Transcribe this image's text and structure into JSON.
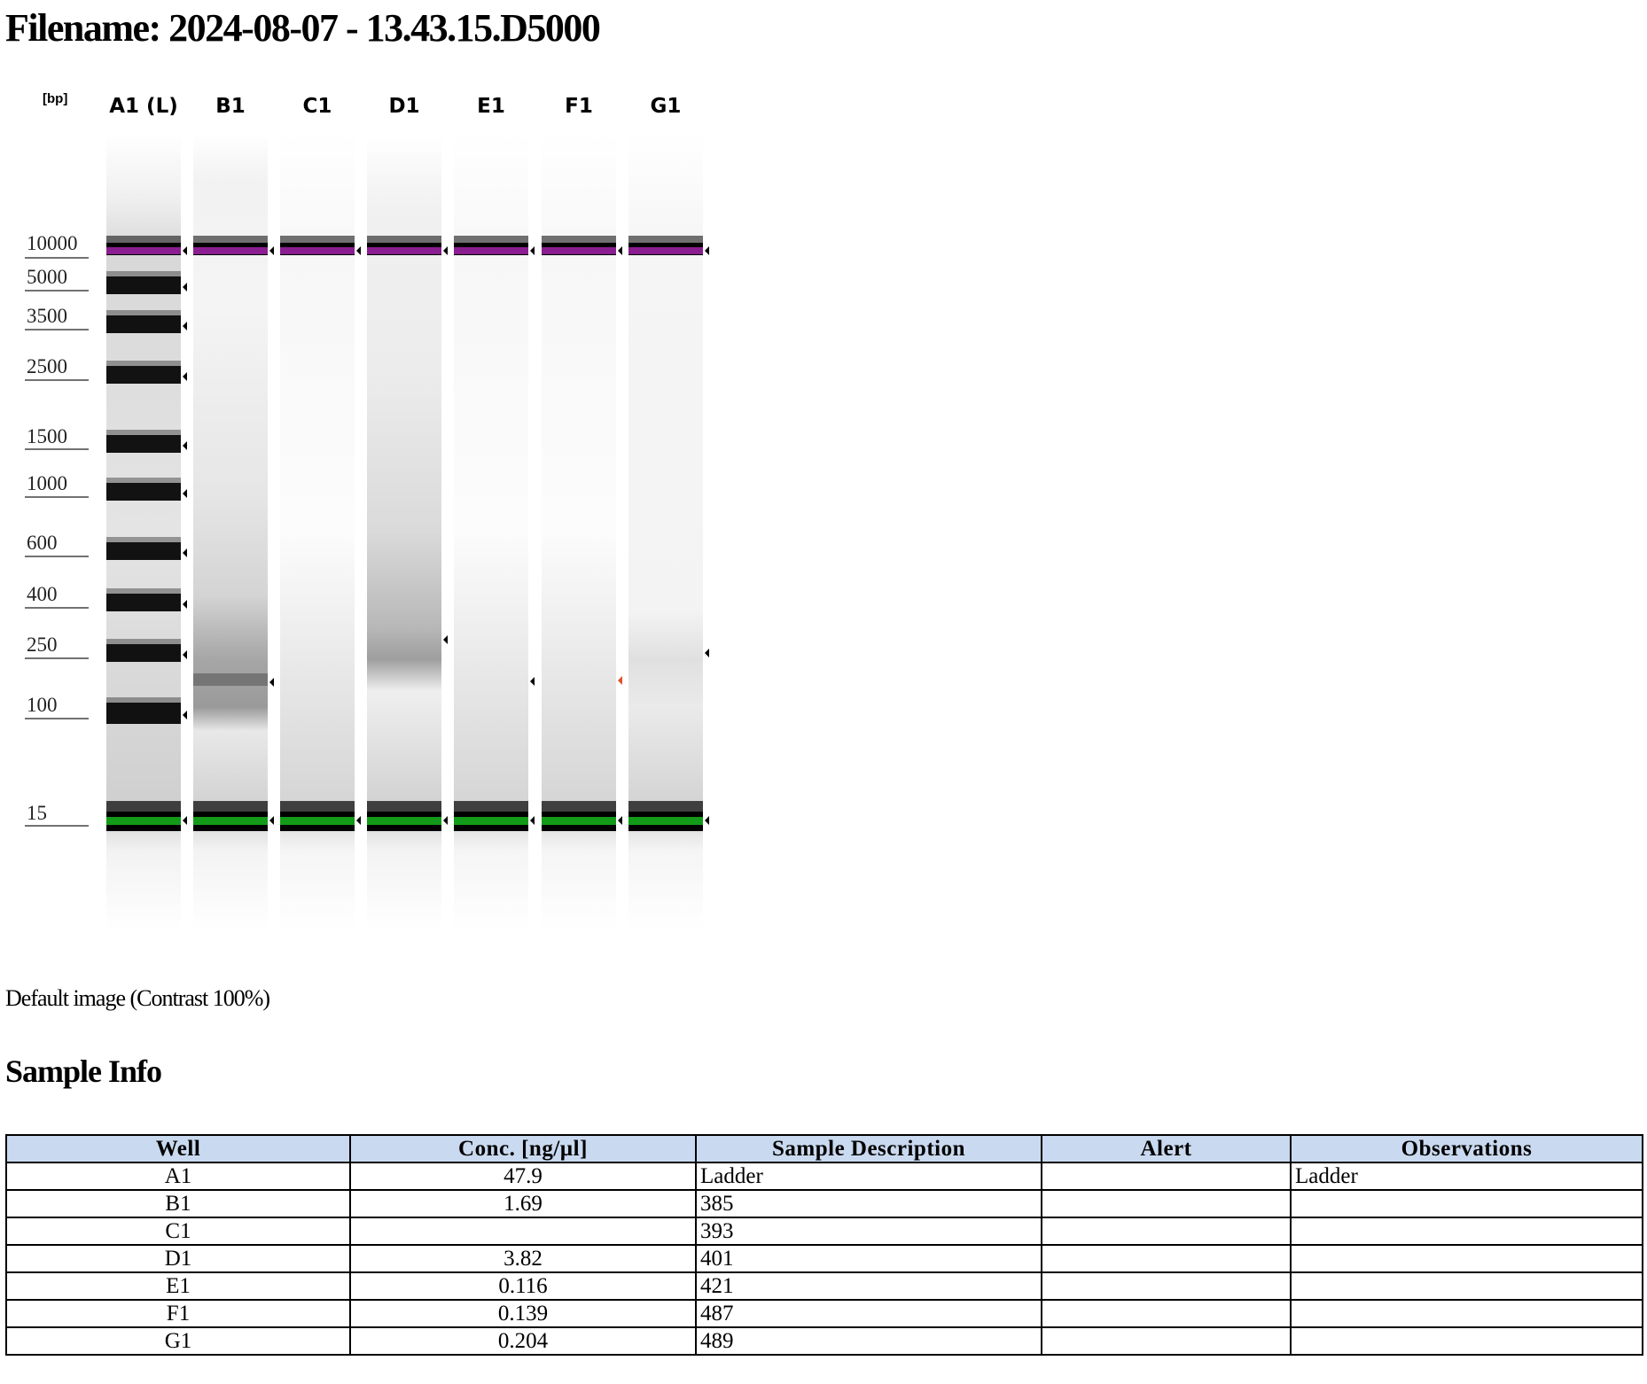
{
  "header": {
    "filename": "Filename: 2024-08-07 - 13.43.15.D5000"
  },
  "gel": {
    "unit_label": "[bp]",
    "lanes": [
      "A1 (L)",
      "B1",
      "C1",
      "D1",
      "E1",
      "F1",
      "G1"
    ],
    "ladder_bp": [
      "10000",
      "5000",
      "3500",
      "2500",
      "1500",
      "1000",
      "600",
      "400",
      "250",
      "100",
      "15"
    ],
    "colors": {
      "upper_marker": "#8a1d8f",
      "lower_marker": "#129a18",
      "alert_arrow": "#e2502a",
      "band": "#000000"
    }
  },
  "caption": "Default image (Contrast 100%)",
  "sample_info": {
    "title": "Sample Info",
    "columns": [
      "Well",
      "Conc. [ng/µl]",
      "Sample Description",
      "Alert",
      "Observations"
    ],
    "rows": [
      {
        "well": "A1",
        "conc": "47.9",
        "desc": "Ladder",
        "alert": "",
        "obs": "Ladder"
      },
      {
        "well": "B1",
        "conc": "1.69",
        "desc": "385",
        "alert": "",
        "obs": ""
      },
      {
        "well": "C1",
        "conc": "",
        "desc": "393",
        "alert": "",
        "obs": ""
      },
      {
        "well": "D1",
        "conc": "3.82",
        "desc": "401",
        "alert": "",
        "obs": ""
      },
      {
        "well": "E1",
        "conc": "0.116",
        "desc": "421",
        "alert": "",
        "obs": ""
      },
      {
        "well": "F1",
        "conc": "0.139",
        "desc": "487",
        "alert": "",
        "obs": ""
      },
      {
        "well": "G1",
        "conc": "0.204",
        "desc": "489",
        "alert": "",
        "obs": ""
      }
    ]
  }
}
